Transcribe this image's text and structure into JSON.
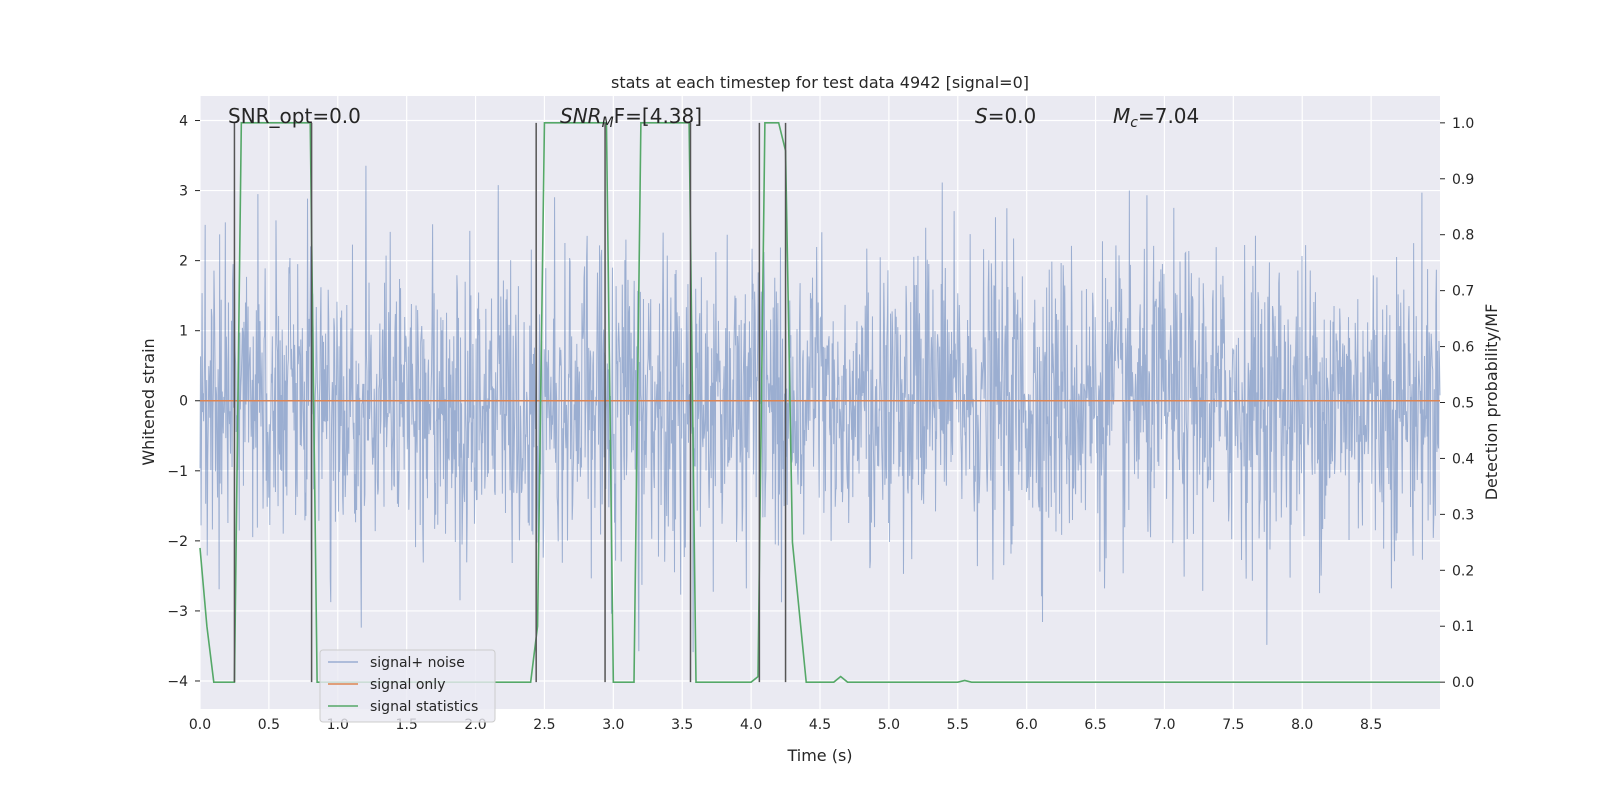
{
  "chart_data": {
    "type": "line",
    "title": "stats at each timestep for test data 4942 [signal=0]",
    "xlabel": "Time (s)",
    "ylabel": "Whitened strain",
    "ylabel_right": "Detection probability/MF",
    "xlim": [
      0.0,
      9.0
    ],
    "ylim": [
      -4.4,
      4.35
    ],
    "ylim_right": [
      -0.048,
      1.048
    ],
    "xticks": [
      "0.0",
      "0.5",
      "1.0",
      "1.5",
      "2.0",
      "2.5",
      "3.0",
      "3.5",
      "4.0",
      "4.5",
      "5.0",
      "5.5",
      "6.0",
      "6.5",
      "7.0",
      "7.5",
      "8.0",
      "8.5"
    ],
    "yticks": [
      "4",
      "3",
      "2",
      "1",
      "0",
      "−1",
      "−2",
      "−3",
      "−4"
    ],
    "yticks_values": [
      4,
      3,
      2,
      1,
      0,
      -1,
      -2,
      -3,
      -4
    ],
    "yticks_right": [
      "1.0",
      "0.9",
      "0.8",
      "0.7",
      "0.6",
      "0.5",
      "0.4",
      "0.3",
      "0.2",
      "0.1",
      "0.0"
    ],
    "yticks_right_values": [
      1.0,
      0.9,
      0.8,
      0.7,
      0.6,
      0.5,
      0.4,
      0.3,
      0.2,
      0.1,
      0.0
    ],
    "grid": true,
    "legend_position": "lower-left",
    "annotations": {
      "snr_opt": "SNR_opt=0.0",
      "snr_mf_main": "SNR",
      "snr_mf_sub": "M",
      "snr_mf_tail": "F=[4.38]",
      "s_main": "S",
      "s_tail": "=0.0",
      "mc_main": "M",
      "mc_sub": "c",
      "mc_tail": "=7.04"
    },
    "series": [
      {
        "name": "signal+ noise",
        "color": "#4c72b0",
        "description_values": "whitened noise, approx. gaussian, bursts to ±4",
        "amplitude_envelope": [
          -4.0,
          4.0
        ]
      },
      {
        "name": "signal only",
        "color": "#dd8452",
        "values_constant": 0.0
      },
      {
        "name": "signal statistics",
        "color": "#55a868",
        "axis": "right",
        "x": [
          0.0,
          0.05,
          0.1,
          0.25,
          0.3,
          0.8,
          0.85,
          0.9,
          1.0,
          2.4,
          2.45,
          2.5,
          2.95,
          3.0,
          3.15,
          3.2,
          3.55,
          3.6,
          3.7,
          4.0,
          4.05,
          4.1,
          4.2,
          4.25,
          4.3,
          4.4,
          4.6,
          4.65,
          4.7,
          5.0,
          5.5,
          5.55,
          5.6,
          9.0
        ],
        "values": [
          0.24,
          0.1,
          0.0,
          0.0,
          1.0,
          1.0,
          0.0,
          0.0,
          0.0,
          0.0,
          0.1,
          1.0,
          1.0,
          0.0,
          0.0,
          1.0,
          1.0,
          0.0,
          0.0,
          0.0,
          0.01,
          1.0,
          1.0,
          0.95,
          0.25,
          0.0,
          0.0,
          0.01,
          0.0,
          0.0,
          0.0,
          0.003,
          0.0,
          0.0
        ]
      }
    ],
    "vertical_markers_x": [
      0.25,
      0.81,
      2.44,
      2.94,
      3.56,
      4.06,
      4.25
    ]
  }
}
